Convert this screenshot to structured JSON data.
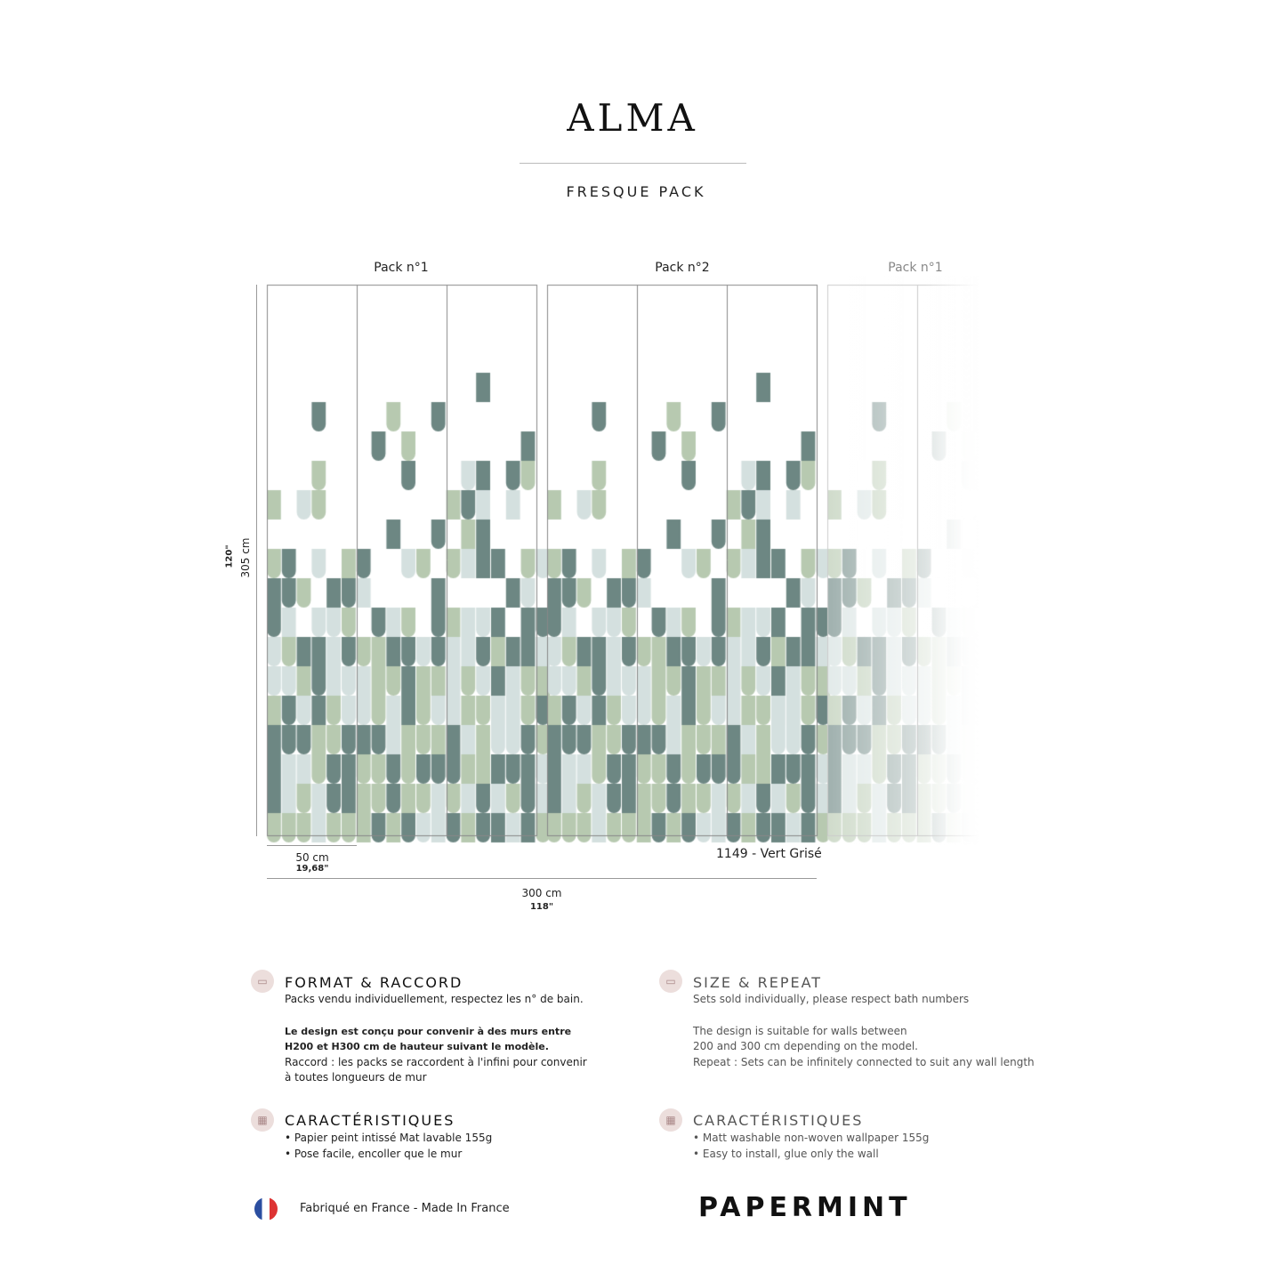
{
  "header": {
    "title": "ALMA",
    "subtitle": "FRESQUE PACK"
  },
  "packs": [
    {
      "label": "Pack n°1"
    },
    {
      "label": "Pack n°2"
    },
    {
      "label": "Pack n°1"
    }
  ],
  "dimensions": {
    "height_cm": "305 cm",
    "height_in": "120\"",
    "strip_cm": "50 cm",
    "strip_in": "19,68\"",
    "total_cm": "300 cm",
    "total_in": "118\""
  },
  "colorway": "1149 - Vert Grisé",
  "colors": {
    "dark": "#6d8783",
    "green": "#b7c9b0",
    "light": "#d4e0df"
  },
  "fr": {
    "format_title": "FORMAT & RACCORD",
    "format_lines": [
      "Packs vendu individuellement, respectez les n° de bain.",
      "Le design est conçu pour convenir à des murs entre",
      "H200 et H300 cm de hauteur suivant le modèle.",
      "Raccord : les packs se raccordent à l'infini pour convenir",
      "à toutes longueurs de mur"
    ],
    "char_title": "CARACTÉRISTIQUES",
    "char_lines": [
      "• Papier peint intissé Mat lavable 155g",
      "• Pose facile, encoller que le mur"
    ]
  },
  "en": {
    "format_title": "SIZE & REPEAT",
    "format_lines": [
      "Sets sold individually, please respect bath numbers",
      "The design is suitable for walls between",
      "200 and 300 cm depending on the model.",
      "Repeat : Sets can be infinitely connected to suit any wall length"
    ],
    "char_title": "CARACTÉRISTIQUES",
    "char_lines": [
      "• Matt washable non-woven wallpaper 155g",
      "• Easy to install, glue only the wall"
    ]
  },
  "footer": {
    "made_in": "Fabriqué en France - Made In France",
    "badge": "made in France",
    "brand": "PAPERMINT"
  }
}
